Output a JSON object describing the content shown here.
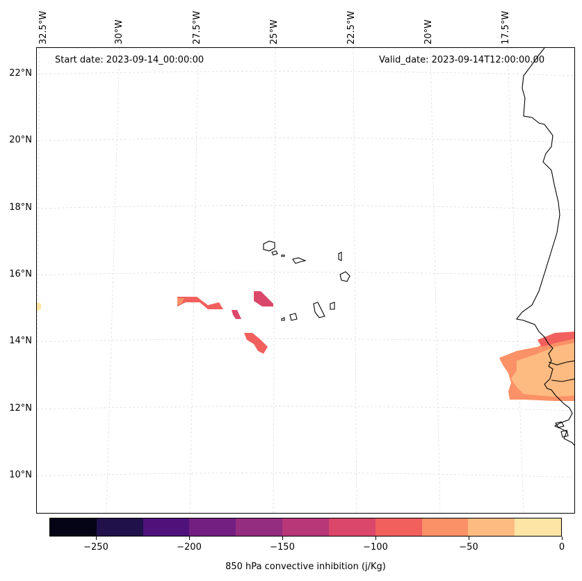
{
  "header": {
    "start_date": "Start date: 2023-09-14_00:00:00",
    "valid_date": "Valid_date: 2023-09-14T12:00:00.00"
  },
  "longitude_labels": [
    "32.5°W",
    "30°W",
    "27.5°W",
    "25°W",
    "22.5°W",
    "20°W",
    "17.5°W"
  ],
  "latitude_labels": [
    "22°N",
    "20°N",
    "18°N",
    "16°N",
    "14°N",
    "12°N",
    "10°N"
  ],
  "colorbar": {
    "label": "850 hPa convective inhibition (j/Kg)",
    "tick_labels": [
      "−250",
      "−200",
      "−150",
      "−100",
      "−50",
      "0"
    ],
    "ticks": [
      -250,
      -200,
      -150,
      -100,
      -50,
      0
    ],
    "range": [
      -275,
      0
    ],
    "colors": [
      "#050417",
      "#20114b",
      "#4f127b",
      "#731f81",
      "#942c80",
      "#b73779",
      "#db476a",
      "#f1605d",
      "#fb9167",
      "#febb81",
      "#fde5a5"
    ]
  },
  "chart_data": {
    "type": "map",
    "title": "",
    "variable": "850 hPa convective inhibition",
    "units": "j/Kg",
    "extent": {
      "lon": [
        -33,
        -15.5
      ],
      "lat": [
        9,
        22.5
      ]
    },
    "features": [
      "Cape Verde islands",
      "West African coastline"
    ],
    "regions": [
      {
        "name": "west-edge-patch",
        "approx_value": -10
      },
      {
        "name": "patch-near-27W-15N",
        "approx_value": -85
      },
      {
        "name": "patch-near-25.5W-15N",
        "approx_value": -120
      },
      {
        "name": "patch-near-25.5W-14N",
        "approx_value": -95
      },
      {
        "name": "african-coast-patch",
        "approx_value": -45
      }
    ]
  }
}
